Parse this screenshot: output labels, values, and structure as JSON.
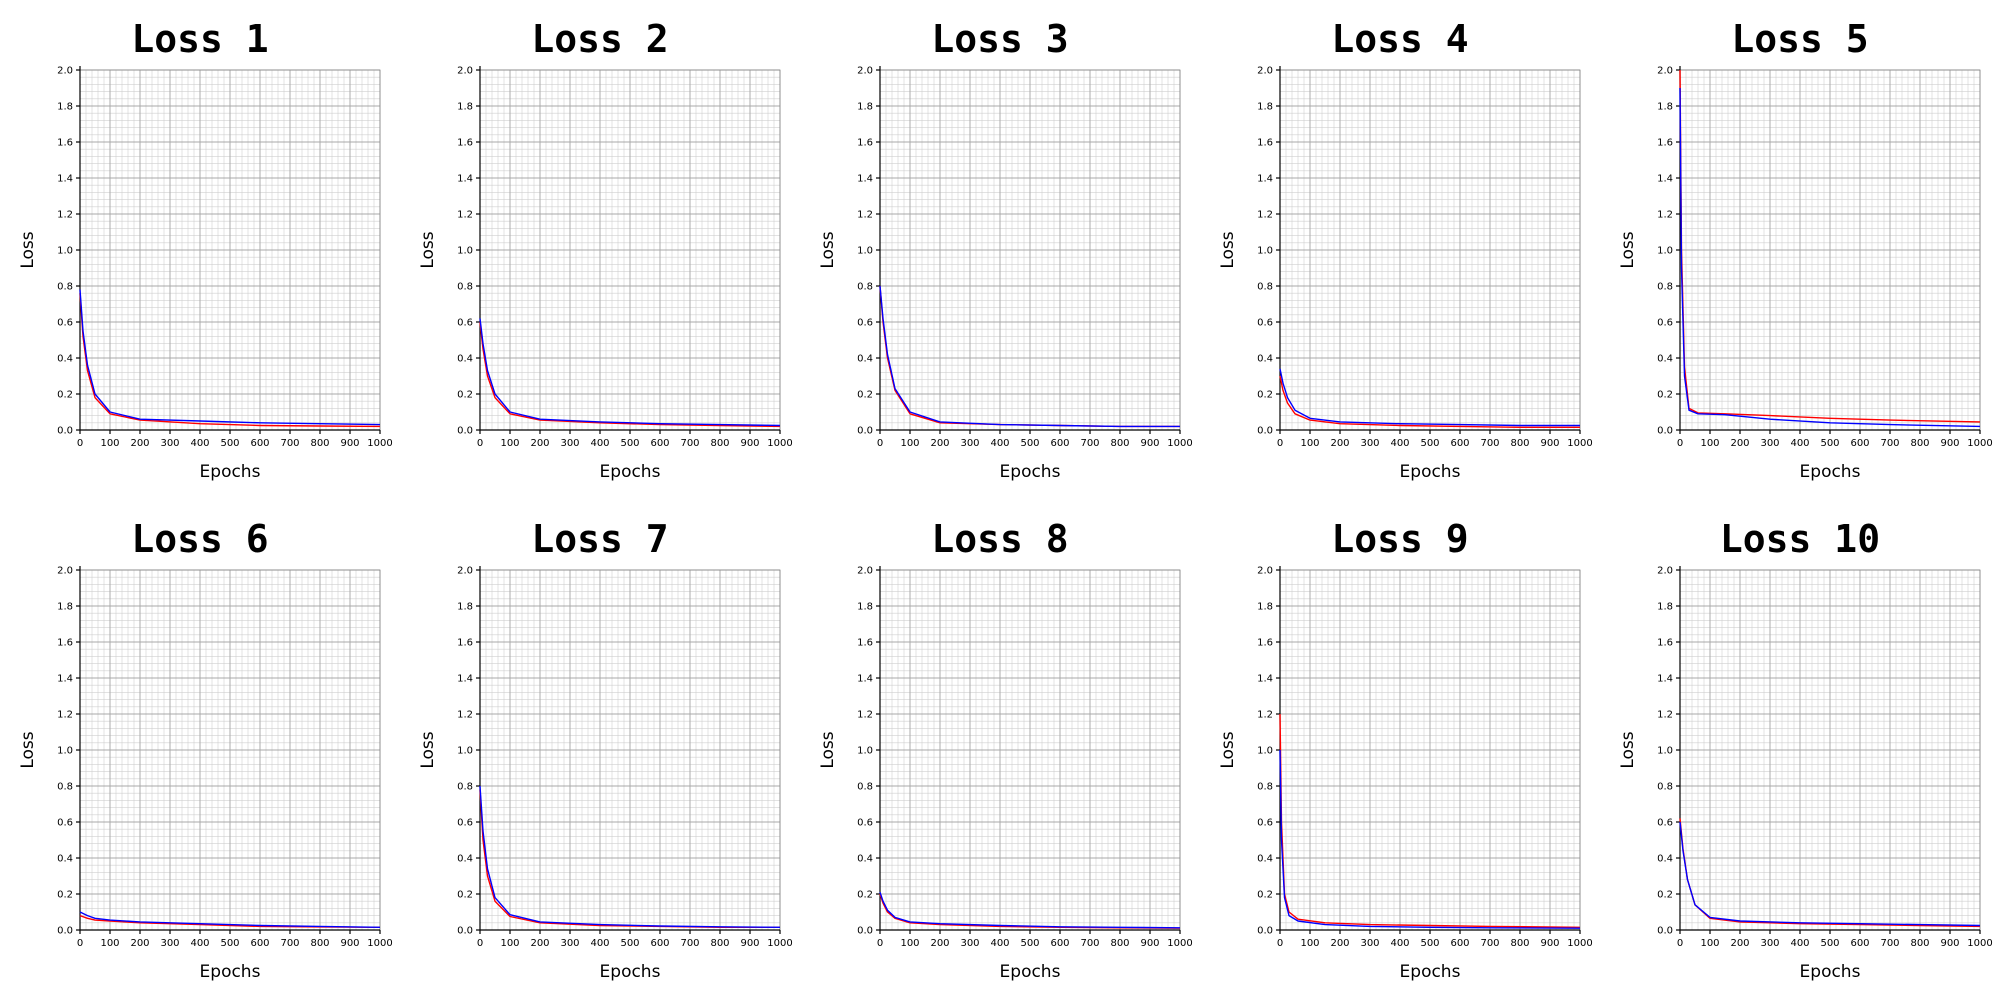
{
  "colors": {
    "train": "#ff0000",
    "val": "#0000ff"
  },
  "chart_data": [
    {
      "type": "line",
      "title": "Loss 1",
      "xlabel": "Epochs",
      "ylabel": "Loss",
      "xlim": [
        0,
        1000
      ],
      "ylim": [
        0,
        2.0
      ],
      "grid": true,
      "xticks": [
        "0",
        "100",
        "200",
        "300",
        "400",
        "500",
        "600",
        "700",
        "800",
        "900",
        "1000"
      ],
      "yticks": [
        "0.0",
        "0.2",
        "0.4",
        "0.6",
        "0.8",
        "1.0",
        "1.2",
        "1.4",
        "1.6",
        "1.8",
        "2.0"
      ],
      "x": [
        0,
        10,
        25,
        50,
        100,
        200,
        400,
        600,
        800,
        1000
      ],
      "series": [
        {
          "color": "#ff0000",
          "values": [
            0.76,
            0.52,
            0.33,
            0.18,
            0.09,
            0.055,
            0.035,
            0.025,
            0.022,
            0.02
          ]
        },
        {
          "color": "#0000ff",
          "values": [
            0.78,
            0.55,
            0.36,
            0.2,
            0.1,
            0.06,
            0.05,
            0.04,
            0.035,
            0.03
          ]
        }
      ]
    },
    {
      "type": "line",
      "title": "Loss 2",
      "xlabel": "Epochs",
      "ylabel": "Loss",
      "xlim": [
        0,
        1000
      ],
      "ylim": [
        0,
        2.0
      ],
      "grid": true,
      "xticks": [
        "0",
        "100",
        "200",
        "300",
        "400",
        "500",
        "600",
        "700",
        "800",
        "900",
        "1000"
      ],
      "yticks": [
        "0.0",
        "0.2",
        "0.4",
        "0.6",
        "0.8",
        "1.0",
        "1.2",
        "1.4",
        "1.6",
        "1.8",
        "2.0"
      ],
      "x": [
        0,
        10,
        25,
        50,
        100,
        200,
        400,
        600,
        800,
        1000
      ],
      "series": [
        {
          "color": "#ff0000",
          "values": [
            0.6,
            0.45,
            0.3,
            0.18,
            0.09,
            0.055,
            0.04,
            0.03,
            0.025,
            0.02
          ]
        },
        {
          "color": "#0000ff",
          "values": [
            0.62,
            0.48,
            0.33,
            0.2,
            0.1,
            0.06,
            0.045,
            0.035,
            0.03,
            0.025
          ]
        }
      ]
    },
    {
      "type": "line",
      "title": "Loss 3",
      "xlabel": "Epochs",
      "ylabel": "Loss",
      "xlim": [
        0,
        1000
      ],
      "ylim": [
        0,
        2.0
      ],
      "grid": true,
      "xticks": [
        "0",
        "100",
        "200",
        "300",
        "400",
        "500",
        "600",
        "700",
        "800",
        "900",
        "1000"
      ],
      "yticks": [
        "0.0",
        "0.2",
        "0.4",
        "0.6",
        "0.8",
        "1.0",
        "1.2",
        "1.4",
        "1.6",
        "1.8",
        "2.0"
      ],
      "x": [
        0,
        10,
        25,
        50,
        100,
        200,
        400,
        600,
        800,
        1000
      ],
      "series": [
        {
          "color": "#ff0000",
          "values": [
            0.8,
            0.6,
            0.4,
            0.22,
            0.09,
            0.04,
            0.03,
            0.025,
            0.02,
            0.02
          ]
        },
        {
          "color": "#0000ff",
          "values": [
            0.8,
            0.62,
            0.42,
            0.23,
            0.1,
            0.045,
            0.03,
            0.025,
            0.02,
            0.02
          ]
        }
      ]
    },
    {
      "type": "line",
      "title": "Loss 4",
      "xlabel": "Epochs",
      "ylabel": "Loss",
      "xlim": [
        0,
        1000
      ],
      "ylim": [
        0,
        2.0
      ],
      "grid": true,
      "xticks": [
        "0",
        "100",
        "200",
        "300",
        "400",
        "500",
        "600",
        "700",
        "800",
        "900",
        "1000"
      ],
      "yticks": [
        "0.0",
        "0.2",
        "0.4",
        "0.6",
        "0.8",
        "1.0",
        "1.2",
        "1.4",
        "1.6",
        "1.8",
        "2.0"
      ],
      "x": [
        0,
        10,
        25,
        50,
        100,
        200,
        400,
        600,
        800,
        1000
      ],
      "series": [
        {
          "color": "#ff0000",
          "values": [
            0.3,
            0.22,
            0.15,
            0.09,
            0.055,
            0.035,
            0.025,
            0.02,
            0.015,
            0.015
          ]
        },
        {
          "color": "#0000ff",
          "values": [
            0.34,
            0.26,
            0.18,
            0.11,
            0.065,
            0.045,
            0.035,
            0.03,
            0.025,
            0.025
          ]
        }
      ]
    },
    {
      "type": "line",
      "title": "Loss 5",
      "xlabel": "Epochs",
      "ylabel": "Loss",
      "xlim": [
        0,
        1000
      ],
      "ylim": [
        0,
        2.0
      ],
      "grid": true,
      "xticks": [
        "0",
        "100",
        "200",
        "300",
        "400",
        "500",
        "600",
        "700",
        "800",
        "900",
        "1000"
      ],
      "yticks": [
        "0.0",
        "0.2",
        "0.4",
        "0.6",
        "0.8",
        "1.0",
        "1.2",
        "1.4",
        "1.6",
        "1.8",
        "2.0"
      ],
      "x": [
        0,
        5,
        15,
        30,
        60,
        150,
        300,
        500,
        700,
        1000
      ],
      "series": [
        {
          "color": "#ff0000",
          "values": [
            2.0,
            1.0,
            0.35,
            0.12,
            0.095,
            0.09,
            0.08,
            0.065,
            0.055,
            0.045
          ]
        },
        {
          "color": "#0000ff",
          "values": [
            1.9,
            0.9,
            0.3,
            0.11,
            0.09,
            0.085,
            0.06,
            0.04,
            0.03,
            0.02
          ]
        }
      ]
    },
    {
      "type": "line",
      "title": "Loss 6",
      "xlabel": "Epochs",
      "ylabel": "Loss",
      "xlim": [
        0,
        1000
      ],
      "ylim": [
        0,
        2.0
      ],
      "grid": true,
      "xticks": [
        "0",
        "100",
        "200",
        "300",
        "400",
        "500",
        "600",
        "700",
        "800",
        "900",
        "1000"
      ],
      "yticks": [
        "0.0",
        "0.2",
        "0.4",
        "0.6",
        "0.8",
        "1.0",
        "1.2",
        "1.4",
        "1.6",
        "1.8",
        "2.0"
      ],
      "x": [
        0,
        25,
        50,
        100,
        200,
        400,
        600,
        800,
        1000
      ],
      "series": [
        {
          "color": "#ff0000",
          "values": [
            0.08,
            0.065,
            0.055,
            0.05,
            0.04,
            0.03,
            0.02,
            0.017,
            0.015
          ]
        },
        {
          "color": "#0000ff",
          "values": [
            0.1,
            0.08,
            0.065,
            0.055,
            0.045,
            0.035,
            0.025,
            0.02,
            0.015
          ]
        }
      ]
    },
    {
      "type": "line",
      "title": "Loss 7",
      "xlabel": "Epochs",
      "ylabel": "Loss",
      "xlim": [
        0,
        1000
      ],
      "ylim": [
        0,
        2.0
      ],
      "grid": true,
      "xticks": [
        "0",
        "100",
        "200",
        "300",
        "400",
        "500",
        "600",
        "700",
        "800",
        "900",
        "1000"
      ],
      "yticks": [
        "0.0",
        "0.2",
        "0.4",
        "0.6",
        "0.8",
        "1.0",
        "1.2",
        "1.4",
        "1.6",
        "1.8",
        "2.0"
      ],
      "x": [
        0,
        10,
        25,
        50,
        100,
        200,
        400,
        600,
        800,
        1000
      ],
      "series": [
        {
          "color": "#ff0000",
          "values": [
            0.78,
            0.5,
            0.3,
            0.16,
            0.075,
            0.04,
            0.025,
            0.02,
            0.015,
            0.015
          ]
        },
        {
          "color": "#0000ff",
          "values": [
            0.8,
            0.55,
            0.34,
            0.18,
            0.085,
            0.045,
            0.03,
            0.022,
            0.018,
            0.015
          ]
        }
      ]
    },
    {
      "type": "line",
      "title": "Loss 8",
      "xlabel": "Epochs",
      "ylabel": "Loss",
      "xlim": [
        0,
        1000
      ],
      "ylim": [
        0,
        2.0
      ],
      "grid": true,
      "xticks": [
        "0",
        "100",
        "200",
        "300",
        "400",
        "500",
        "600",
        "700",
        "800",
        "900",
        "1000"
      ],
      "yticks": [
        "0.0",
        "0.2",
        "0.4",
        "0.6",
        "0.8",
        "1.0",
        "1.2",
        "1.4",
        "1.6",
        "1.8",
        "2.0"
      ],
      "x": [
        0,
        10,
        25,
        50,
        100,
        200,
        400,
        600,
        800,
        1000
      ],
      "series": [
        {
          "color": "#ff0000",
          "values": [
            0.2,
            0.15,
            0.1,
            0.065,
            0.04,
            0.03,
            0.02,
            0.015,
            0.012,
            0.01
          ]
        },
        {
          "color": "#0000ff",
          "values": [
            0.21,
            0.16,
            0.11,
            0.07,
            0.045,
            0.035,
            0.025,
            0.018,
            0.015,
            0.012
          ]
        }
      ]
    },
    {
      "type": "line",
      "title": "Loss 9",
      "xlabel": "Epochs",
      "ylabel": "Loss",
      "xlim": [
        0,
        1000
      ],
      "ylim": [
        0,
        2.0
      ],
      "grid": true,
      "xticks": [
        "0",
        "100",
        "200",
        "300",
        "400",
        "500",
        "600",
        "700",
        "800",
        "900",
        "1000"
      ],
      "yticks": [
        "0.0",
        "0.2",
        "0.4",
        "0.6",
        "0.8",
        "1.0",
        "1.2",
        "1.4",
        "1.6",
        "1.8",
        "2.0"
      ],
      "x": [
        0,
        5,
        15,
        30,
        60,
        150,
        300,
        500,
        700,
        1000
      ],
      "series": [
        {
          "color": "#ff0000",
          "values": [
            1.2,
            0.6,
            0.2,
            0.1,
            0.06,
            0.04,
            0.03,
            0.025,
            0.02,
            0.015
          ]
        },
        {
          "color": "#0000ff",
          "values": [
            1.0,
            0.5,
            0.18,
            0.08,
            0.05,
            0.03,
            0.02,
            0.015,
            0.012,
            0.01
          ]
        }
      ]
    },
    {
      "type": "line",
      "title": "Loss 10",
      "xlabel": "Epochs",
      "ylabel": "Loss",
      "xlim": [
        0,
        1000
      ],
      "ylim": [
        0,
        2.0
      ],
      "grid": true,
      "xticks": [
        "0",
        "100",
        "200",
        "300",
        "400",
        "500",
        "600",
        "700",
        "800",
        "900",
        "1000"
      ],
      "yticks": [
        "0.0",
        "0.2",
        "0.4",
        "0.6",
        "0.8",
        "1.0",
        "1.2",
        "1.4",
        "1.6",
        "1.8",
        "2.0"
      ],
      "x": [
        0,
        10,
        25,
        50,
        100,
        200,
        400,
        600,
        800,
        1000
      ],
      "series": [
        {
          "color": "#ff0000",
          "values": [
            0.62,
            0.45,
            0.28,
            0.14,
            0.065,
            0.045,
            0.035,
            0.03,
            0.025,
            0.02
          ]
        },
        {
          "color": "#0000ff",
          "values": [
            0.6,
            0.44,
            0.28,
            0.14,
            0.07,
            0.05,
            0.04,
            0.035,
            0.03,
            0.025
          ]
        }
      ]
    }
  ]
}
